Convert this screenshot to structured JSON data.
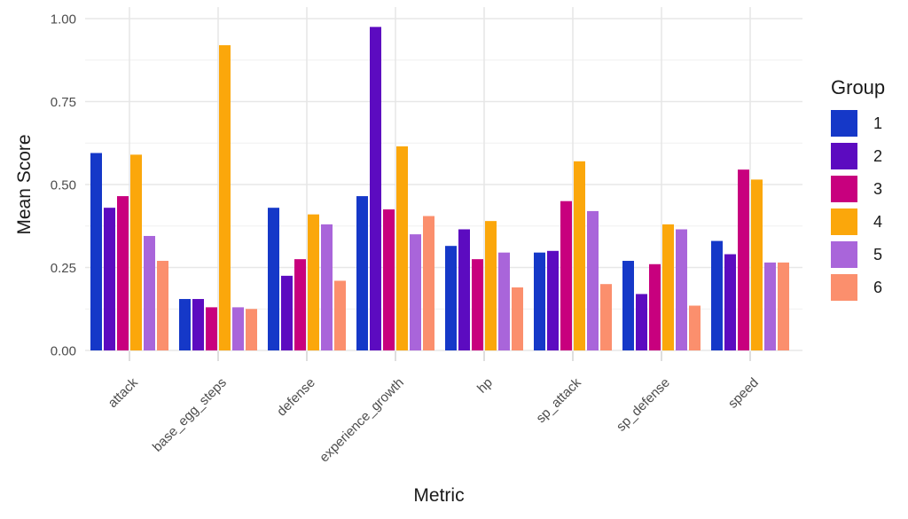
{
  "chart_data": {
    "type": "bar",
    "title": "",
    "xlabel": "Metric",
    "ylabel": "Mean Score",
    "legend_title": "Group",
    "legend_position": "right",
    "ylim": [
      0,
      1
    ],
    "yticks": {
      "values": [
        0,
        0.25,
        0.5,
        0.75,
        1
      ],
      "labels": [
        "0.00",
        "0.25",
        "0.50",
        "0.75",
        "1.00"
      ],
      "minor": [
        0.125,
        0.375,
        0.625,
        0.875
      ]
    },
    "grid": "on",
    "categories": [
      "attack",
      "base_egg_steps",
      "defense",
      "experience_growth",
      "hp",
      "sp_attack",
      "sp_defense",
      "speed"
    ],
    "series": [
      {
        "name": "1",
        "color": "#1538c8",
        "values": [
          0.595,
          0.155,
          0.43,
          0.465,
          0.315,
          0.295,
          0.27,
          0.33
        ]
      },
      {
        "name": "2",
        "color": "#5c0bc0",
        "values": [
          0.43,
          0.155,
          0.225,
          0.975,
          0.365,
          0.3,
          0.17,
          0.29
        ]
      },
      {
        "name": "3",
        "color": "#c8007e",
        "values": [
          0.465,
          0.13,
          0.275,
          0.425,
          0.275,
          0.45,
          0.26,
          0.545
        ]
      },
      {
        "name": "4",
        "color": "#fba70b",
        "values": [
          0.59,
          0.92,
          0.41,
          0.615,
          0.39,
          0.57,
          0.38,
          0.515
        ]
      },
      {
        "name": "5",
        "color": "#a965da",
        "values": [
          0.345,
          0.13,
          0.38,
          0.35,
          0.295,
          0.42,
          0.365,
          0.265
        ]
      },
      {
        "name": "6",
        "color": "#fb8f6d",
        "values": [
          0.27,
          0.125,
          0.21,
          0.405,
          0.19,
          0.2,
          0.135,
          0.265
        ]
      }
    ],
    "colors": {
      "background": "#ffffff",
      "grid_major": "#e7e7e7",
      "grid_minor": "#f0f0f0",
      "axis_tick_mark": "#d2d2d2",
      "tick_label_text": "#4d4d4d",
      "title_text": "#1a1a1a"
    }
  }
}
